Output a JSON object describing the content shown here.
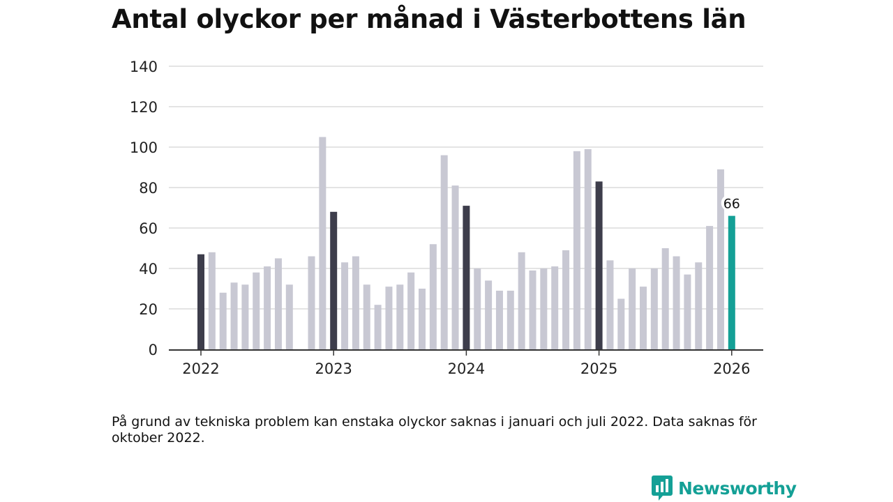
{
  "title": "Antal olyckor per månad i Västerbottens län",
  "note": "På grund av tekniska problem kan enstaka olyckor saknas i januari och juli 2022. Data saknas för oktober 2022.",
  "brand": {
    "name": "Newsworthy"
  },
  "colors": {
    "default_bar": "#c8c8d3",
    "january_bar": "#3d3d4b",
    "highlight_bar": "#14a096",
    "grid": "#dcdcdc",
    "axis": "#333333",
    "brand": "#14a096"
  },
  "chart_data": {
    "type": "bar",
    "title": "Antal olyckor per månad i Västerbottens län",
    "xlabel": "",
    "ylabel": "",
    "ylim": [
      0,
      140
    ],
    "yticks": [
      "0",
      "20",
      "40",
      "60",
      "80",
      "100",
      "120",
      "140"
    ],
    "xticks": [
      {
        "label": "2022",
        "index": 0
      },
      {
        "label": "2023",
        "index": 12
      },
      {
        "label": "2024",
        "index": 24
      },
      {
        "label": "2025",
        "index": 36
      },
      {
        "label": "2026",
        "index": 48
      }
    ],
    "grid": true,
    "values": [
      47,
      48,
      28,
      33,
      32,
      38,
      41,
      45,
      32,
      null,
      46,
      105,
      68,
      43,
      46,
      32,
      22,
      31,
      32,
      38,
      30,
      52,
      96,
      81,
      71,
      40,
      34,
      29,
      29,
      48,
      39,
      40,
      41,
      49,
      98,
      99,
      83,
      44,
      25,
      40,
      31,
      40,
      50,
      46,
      37,
      43,
      61,
      89,
      66
    ],
    "highlight_index": 48,
    "highlight_label": "66"
  }
}
